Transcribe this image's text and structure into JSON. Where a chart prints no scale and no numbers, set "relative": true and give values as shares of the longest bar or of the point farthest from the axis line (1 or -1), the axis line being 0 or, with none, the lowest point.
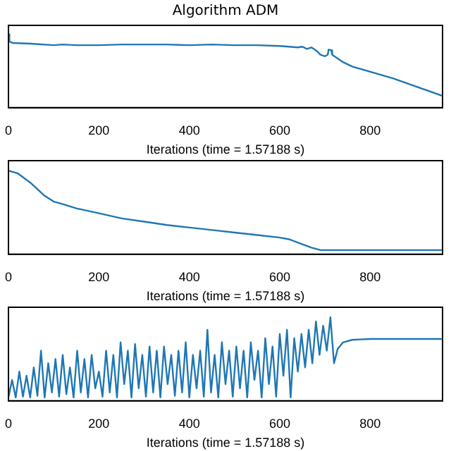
{
  "chart_data": [
    {
      "type": "line",
      "title": "Algorithm ADM",
      "xlabel": "Iterations (time = 1.57188 s)",
      "relative": true,
      "tick_labels": "x",
      "xlim": [
        0,
        960
      ],
      "xticks": [
        0,
        200,
        400,
        600,
        800
      ],
      "x": [
        0,
        2,
        10,
        50,
        100,
        120,
        150,
        200,
        250,
        300,
        350,
        400,
        450,
        500,
        550,
        600,
        620,
        640,
        650,
        660,
        670,
        680,
        690,
        700,
        706,
        708,
        714,
        716,
        740,
        760,
        850,
        960
      ],
      "series": [
        {
          "color": "#1f77b4",
          "values": [
            1,
            0.9,
            0.88,
            0.87,
            0.85,
            0.86,
            0.85,
            0.85,
            0.86,
            0.86,
            0.86,
            0.85,
            0.86,
            0.85,
            0.85,
            0.84,
            0.83,
            0.82,
            0.83,
            0.8,
            0.82,
            0.78,
            0.72,
            0.7,
            0.72,
            0.79,
            0.78,
            0.72,
            0.62,
            0.56,
            0.4,
            0.16
          ]
        }
      ]
    },
    {
      "type": "line",
      "xlabel": "Iterations (time = 1.57188 s)",
      "relative": true,
      "tick_labels": "x",
      "xlim": [
        0,
        960
      ],
      "xticks": [
        0,
        200,
        400,
        600,
        800
      ],
      "x": [
        0,
        20,
        50,
        80,
        100,
        120,
        150,
        200,
        250,
        300,
        350,
        400,
        450,
        500,
        550,
        600,
        620,
        650,
        670,
        690,
        750,
        850,
        960
      ],
      "series": [
        {
          "color": "#1f77b4",
          "values": [
            1,
            0.97,
            0.85,
            0.7,
            0.63,
            0.6,
            0.55,
            0.49,
            0.43,
            0.39,
            0.35,
            0.32,
            0.29,
            0.26,
            0.23,
            0.2,
            0.18,
            0.12,
            0.08,
            0.05,
            0.05,
            0.05,
            0.05
          ]
        }
      ]
    },
    {
      "type": "line",
      "xlabel": "Iterations (time = 1.57188 s)",
      "relative": true,
      "tick_labels": "x",
      "xlim": [
        0,
        960
      ],
      "xticks": [
        0,
        200,
        400,
        600,
        800
      ],
      "x": [
        0,
        8,
        16,
        24,
        32,
        40,
        48,
        56,
        64,
        72,
        80,
        88,
        96,
        104,
        112,
        120,
        128,
        136,
        144,
        152,
        160,
        168,
        176,
        184,
        192,
        200,
        208,
        216,
        224,
        232,
        240,
        248,
        256,
        264,
        272,
        280,
        288,
        296,
        304,
        312,
        320,
        328,
        336,
        344,
        352,
        360,
        368,
        376,
        384,
        392,
        400,
        408,
        416,
        424,
        432,
        440,
        448,
        456,
        464,
        472,
        480,
        488,
        496,
        504,
        512,
        520,
        528,
        536,
        544,
        552,
        560,
        568,
        576,
        584,
        592,
        600,
        608,
        616,
        624,
        632,
        640,
        648,
        656,
        664,
        672,
        680,
        688,
        696,
        704,
        712,
        720,
        728,
        740,
        760,
        800,
        960
      ],
      "series": [
        {
          "color": "#1f77b4",
          "values": [
            0.04,
            0.25,
            0.04,
            0.35,
            0.05,
            0.3,
            0.04,
            0.4,
            0.06,
            0.6,
            0.04,
            0.45,
            0.1,
            0.5,
            0.05,
            0.55,
            0.08,
            0.4,
            0.04,
            0.6,
            0.1,
            0.5,
            0.04,
            0.55,
            0.15,
            0.35,
            0.05,
            0.6,
            0.1,
            0.55,
            0.04,
            0.7,
            0.2,
            0.6,
            0.04,
            0.68,
            0.15,
            0.55,
            0.05,
            0.65,
            0.1,
            0.6,
            0.04,
            0.65,
            0.2,
            0.55,
            0.06,
            0.6,
            0.1,
            0.7,
            0.04,
            0.55,
            0.15,
            0.6,
            0.05,
            0.85,
            0.1,
            0.55,
            0.04,
            0.7,
            0.2,
            0.6,
            0.05,
            0.65,
            0.15,
            0.6,
            0.04,
            0.7,
            0.25,
            0.6,
            0.04,
            0.75,
            0.2,
            0.65,
            0.05,
            0.8,
            0.3,
            0.85,
            0.04,
            0.75,
            0.35,
            0.8,
            0.4,
            0.85,
            0.45,
            0.95,
            0.55,
            0.9,
            0.6,
            1,
            0.45,
            0.62,
            0.7,
            0.73,
            0.74,
            0.74
          ]
        }
      ]
    }
  ]
}
